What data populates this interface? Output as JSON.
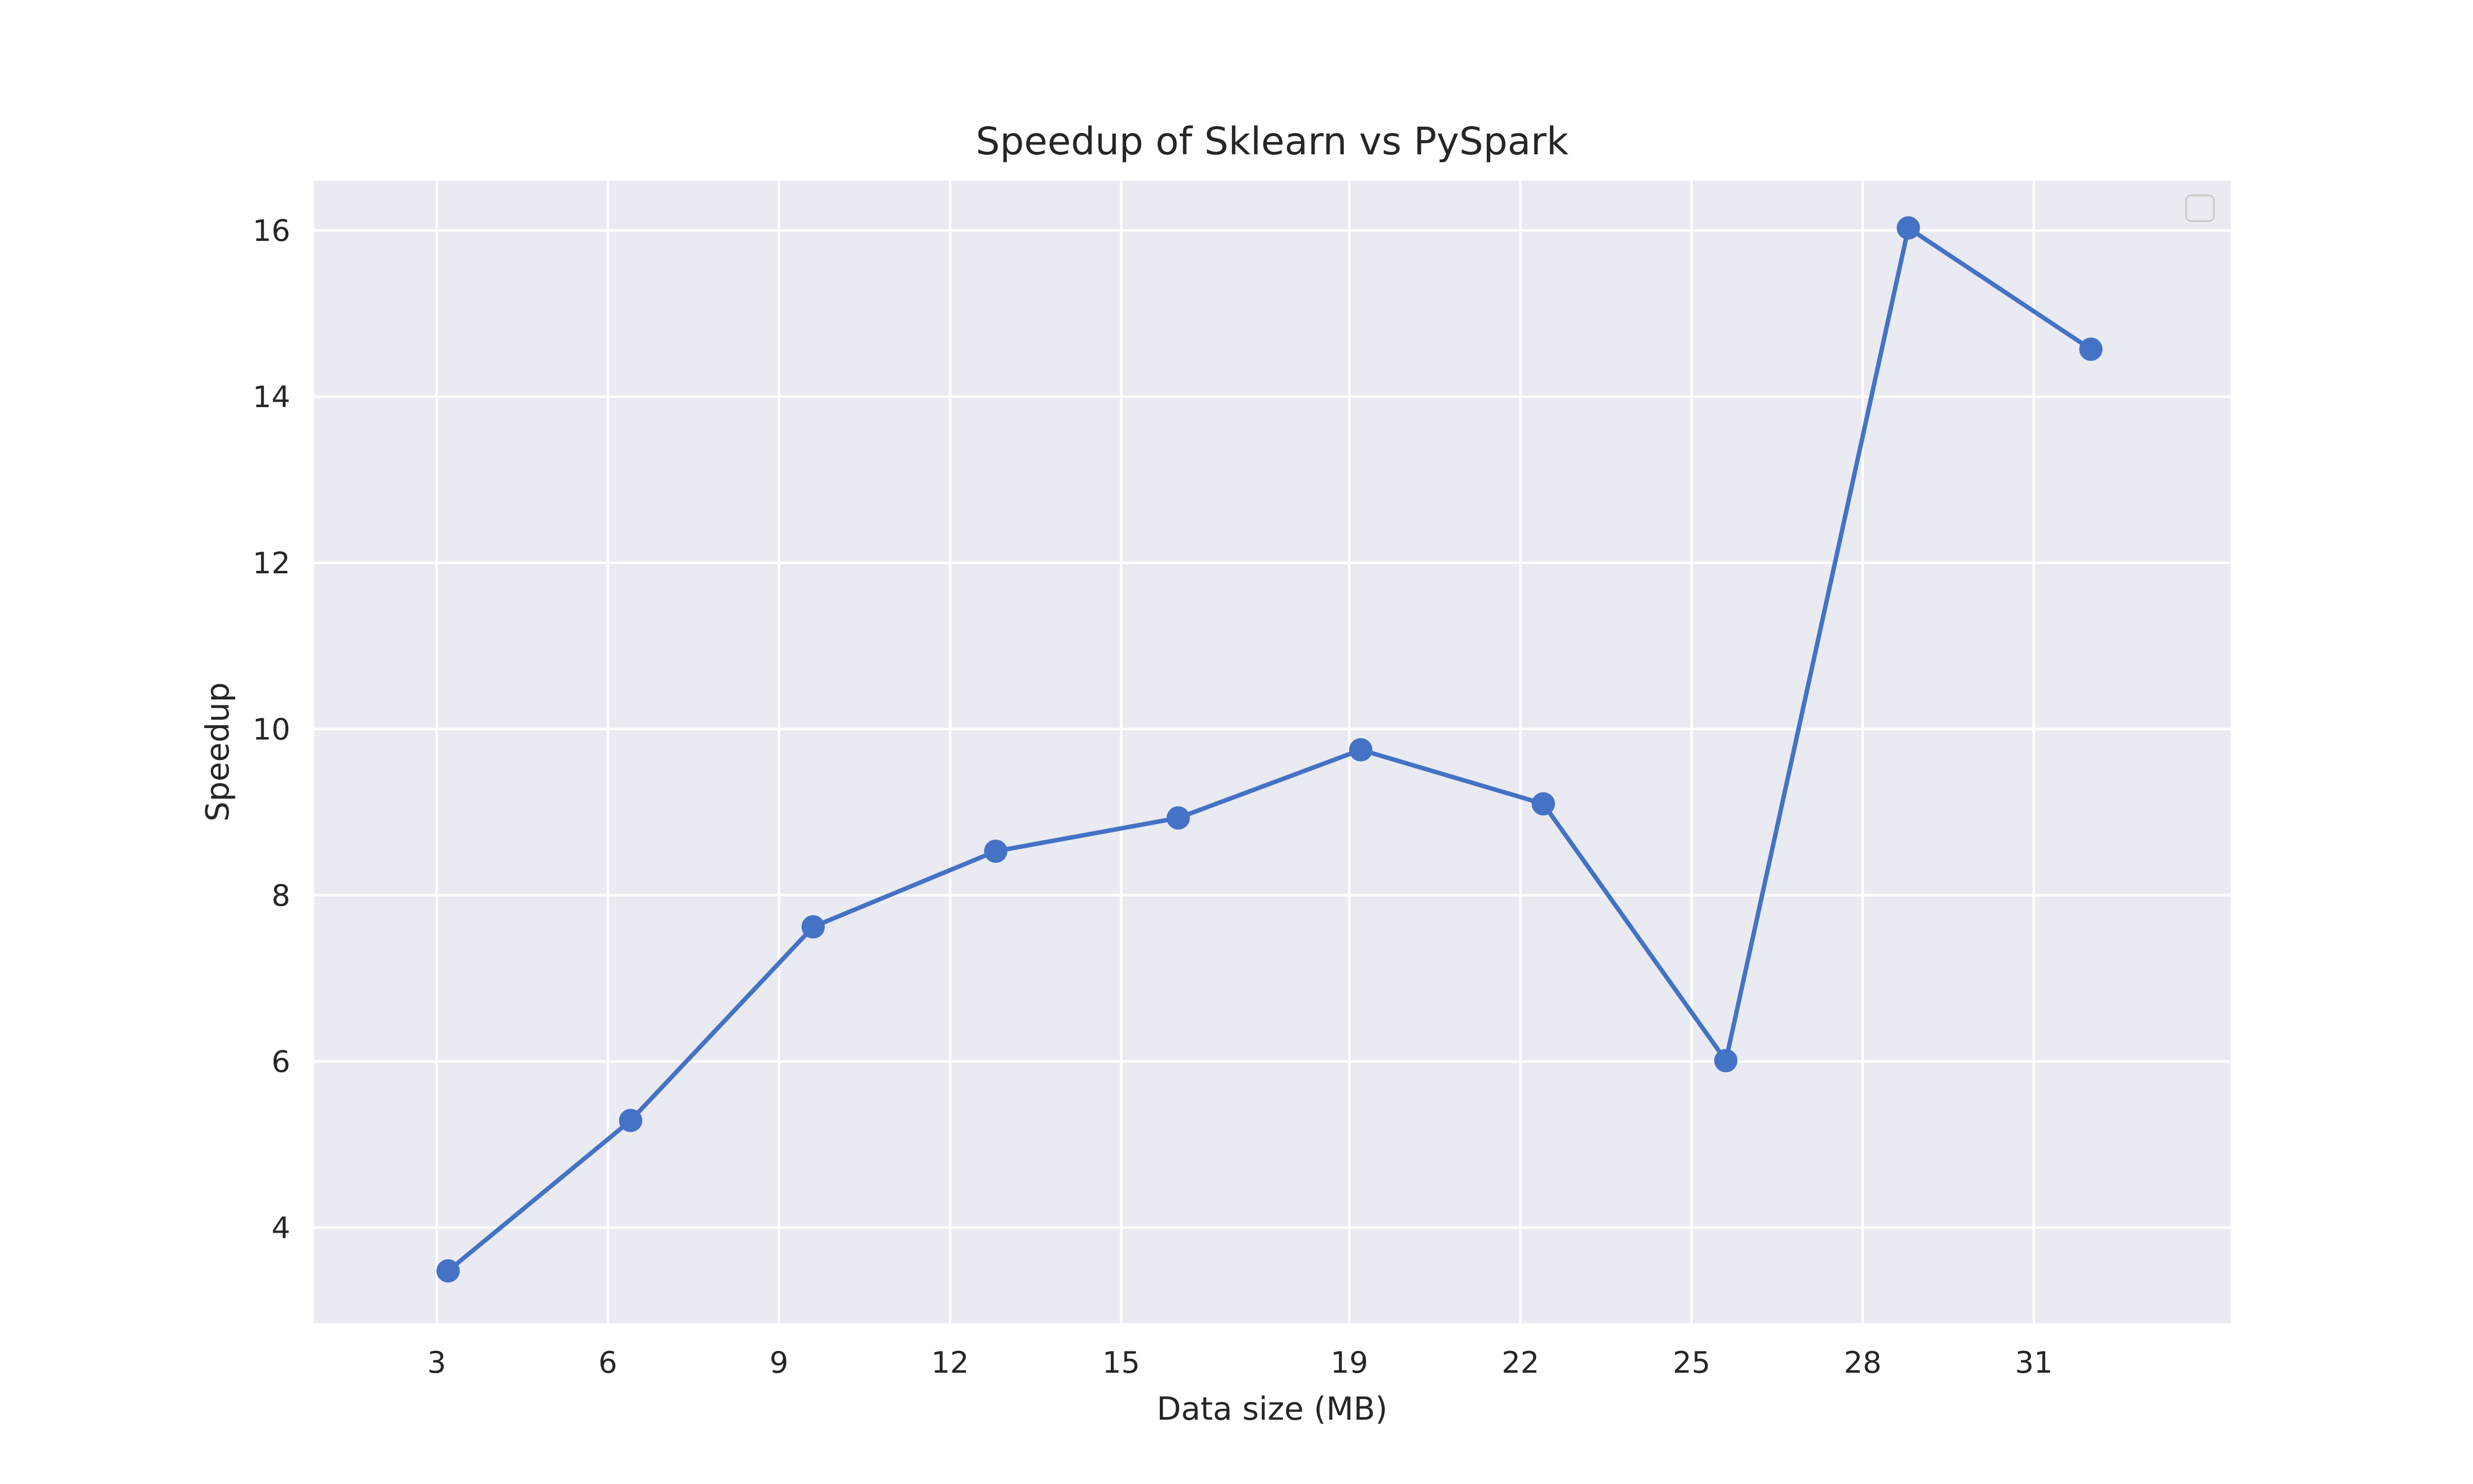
{
  "chart_data": {
    "type": "line",
    "title": "Speedup of Sklearn vs PySpark",
    "xlabel": "Data size (MB)",
    "ylabel": "Speedup",
    "xlim": [
      0.85,
      34.45
    ],
    "ylim": [
      2.85,
      16.6
    ],
    "xticks": [
      3,
      6,
      9,
      12,
      15,
      19,
      22,
      25,
      28,
      31
    ],
    "yticks": [
      4,
      6,
      8,
      10,
      12,
      14,
      16
    ],
    "grid": true,
    "legend": {
      "placement": "top-right",
      "entries": []
    },
    "colors": {
      "background": "#eaeaf2",
      "grid": "#ffffff",
      "line": "#4473c5"
    },
    "series": [
      {
        "x": [
          3.2,
          6.4,
          9.6,
          12.8,
          16.0,
          19.2,
          22.4,
          25.6,
          28.8,
          32.0
        ],
        "y": [
          3.48,
          5.29,
          7.62,
          8.53,
          8.93,
          9.75,
          9.1,
          6.01,
          16.03,
          14.57
        ]
      }
    ]
  }
}
